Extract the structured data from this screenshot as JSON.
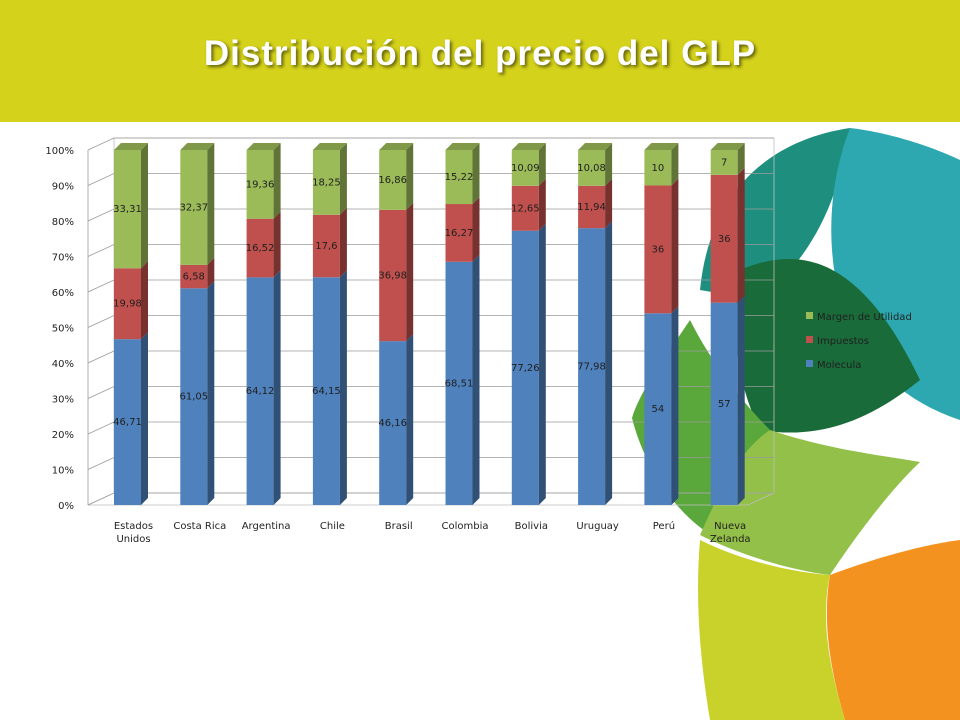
{
  "slide": {
    "title": "Distribución del precio del GLP"
  },
  "colors": {
    "header": "#d4d21a",
    "molecula": "#4f81bd",
    "impuestos": "#c0504d",
    "margen": "#9bbb59",
    "deco_teal": "#2ea8b0",
    "deco_dark_teal": "#1e8f7f",
    "deco_dark_green": "#1a6b3a",
    "deco_green": "#5aa83c",
    "deco_light_green": "#93c048",
    "deco_yellow_green": "#c8d22a",
    "deco_orange": "#f3921e"
  },
  "chart_data": {
    "type": "bar",
    "stacked": true,
    "percent": true,
    "three_d": true,
    "categories": [
      "Estados Unidos",
      "Costa Rica",
      "Argentina",
      "Chile",
      "Brasil",
      "Colombia",
      "Bolivia",
      "Uruguay",
      "Perú",
      "Nueva Zelanda"
    ],
    "series": [
      {
        "name": "Molecula",
        "color": "#4f81bd",
        "values": [
          46.71,
          61.05,
          64.12,
          64.15,
          46.16,
          68.51,
          77.26,
          77.98,
          54,
          57
        ],
        "labels": [
          "46,71",
          "61,05",
          "64,12",
          "64,15",
          "46,16",
          "68,51",
          "77,26",
          "77,98",
          "54",
          "57"
        ]
      },
      {
        "name": "Impuestos",
        "color": "#c0504d",
        "values": [
          19.98,
          6.58,
          16.52,
          17.6,
          36.98,
          16.27,
          12.65,
          11.94,
          36,
          36
        ],
        "labels": [
          "19,98",
          "6,58",
          "16,52",
          "17,6",
          "36,98",
          "16,27",
          "12,65",
          "11,94",
          "36",
          "36"
        ]
      },
      {
        "name": "Margen de Utilidad",
        "color": "#9bbb59",
        "values": [
          33.31,
          32.37,
          19.36,
          18.25,
          16.86,
          15.22,
          10.09,
          10.08,
          10,
          7
        ],
        "labels": [
          "33,31",
          "32,37",
          "19,36",
          "18,25",
          "16,86",
          "15,22",
          "10,09",
          "10,08",
          "10",
          "7"
        ]
      }
    ],
    "yticks": [
      "0%",
      "10%",
      "20%",
      "30%",
      "40%",
      "50%",
      "60%",
      "70%",
      "80%",
      "90%",
      "100%"
    ],
    "ylim": [
      0,
      100
    ],
    "grid": true,
    "legend": {
      "position": "right",
      "order": [
        "Margen de Utilidad",
        "Impuestos",
        "Molecula"
      ],
      "entries": [
        "Margen de Utilidad",
        "Impuestos",
        "Molecula"
      ]
    }
  }
}
